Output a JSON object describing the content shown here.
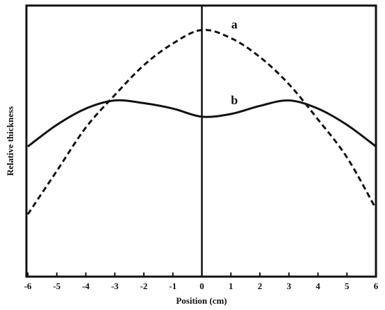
{
  "chart_data": {
    "type": "line",
    "x_label": "Position (cm)",
    "y_label": "Relative thickness",
    "x": [
      -6,
      -5,
      -4,
      -3,
      -2,
      -1,
      0,
      1,
      2,
      3,
      4,
      5,
      6
    ],
    "series": [
      {
        "name": "a",
        "color": "#111111",
        "dash": true,
        "values": [
          0.23,
          0.39,
          0.55,
          0.67,
          0.78,
          0.86,
          0.91,
          0.88,
          0.81,
          0.71,
          0.58,
          0.44,
          0.25
        ]
      },
      {
        "name": "b",
        "color": "#111111",
        "dash": false,
        "values": [
          0.48,
          0.56,
          0.62,
          0.65,
          0.64,
          0.62,
          0.59,
          0.6,
          0.63,
          0.65,
          0.62,
          0.56,
          0.48
        ]
      }
    ],
    "xlim": [
      -6,
      6
    ],
    "ylim": [
      0,
      1
    ],
    "xticks": [
      -6,
      -5,
      -4,
      -3,
      -2,
      -1,
      0,
      1,
      2,
      3,
      4,
      5,
      6
    ]
  }
}
